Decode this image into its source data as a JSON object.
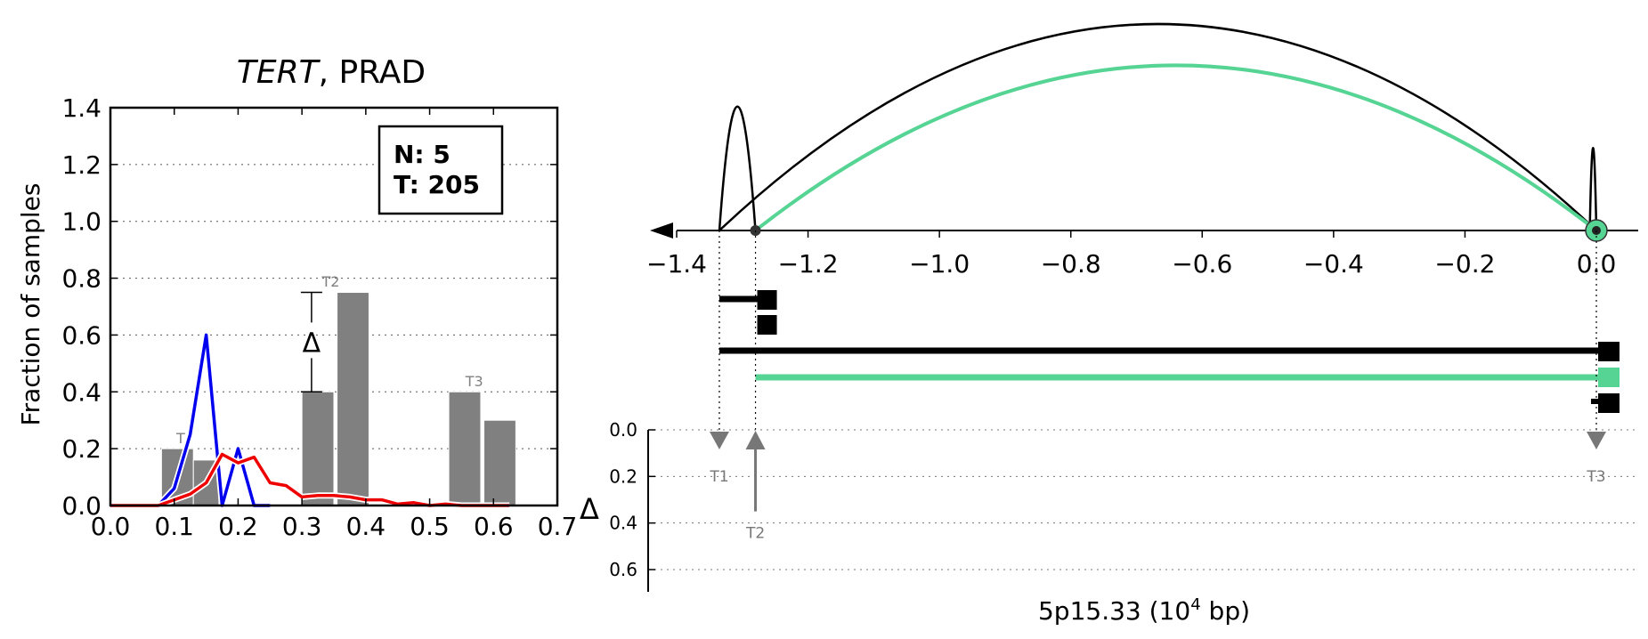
{
  "chart_data": [
    {
      "type": "bar",
      "title_italic": "TERT",
      "title_rest": ", PRAD",
      "xlabel": "",
      "ylabel": "Fraction of samples",
      "xlim": [
        0.0,
        0.7
      ],
      "ylim": [
        0.0,
        1.4
      ],
      "x_ticks": [
        "0.0",
        "0.1",
        "0.2",
        "0.3",
        "0.4",
        "0.5",
        "0.6",
        "0.7"
      ],
      "y_ticks": [
        "0.0",
        "0.2",
        "0.4",
        "0.6",
        "0.8",
        "1.0",
        "1.2",
        "1.4"
      ],
      "grid": "horizontal dotted",
      "legend_box": {
        "line1": "N: 5",
        "line2": "T: 205",
        "placement": "top-right"
      },
      "bars": [
        {
          "x": 0.08,
          "w": 0.05,
          "y": 0.2
        },
        {
          "x": 0.13,
          "w": 0.04,
          "y": 0.16
        },
        {
          "x": 0.3,
          "w": 0.05,
          "y": 0.4
        },
        {
          "x": 0.355,
          "w": 0.05,
          "y": 0.75
        },
        {
          "x": 0.53,
          "w": 0.05,
          "y": 0.4
        },
        {
          "x": 0.585,
          "w": 0.05,
          "y": 0.3
        }
      ],
      "bar_labels": [
        {
          "text": "T",
          "x": 0.11,
          "y": 0.22
        },
        {
          "text": "T2",
          "x": 0.345,
          "y": 0.77
        },
        {
          "text": "T3",
          "x": 0.57,
          "y": 0.42
        }
      ],
      "delta_marker": {
        "symbol": "Δ",
        "x": 0.315,
        "y_low": 0.4,
        "y_high": 0.75
      },
      "series": [
        {
          "color": "#0000ee",
          "x": [
            0.0,
            0.075,
            0.1,
            0.125,
            0.15,
            0.175,
            0.2,
            0.225,
            0.25
          ],
          "y": [
            0.0,
            0.0,
            0.06,
            0.25,
            0.6,
            0.0,
            0.2,
            0.0,
            0.0
          ]
        },
        {
          "color": "#ee0000",
          "x": [
            0.0,
            0.075,
            0.1,
            0.125,
            0.15,
            0.175,
            0.2,
            0.225,
            0.25,
            0.275,
            0.3,
            0.325,
            0.35,
            0.375,
            0.4,
            0.425,
            0.45,
            0.475,
            0.5,
            0.525,
            0.55,
            0.575,
            0.6,
            0.625
          ],
          "y": [
            0.0,
            0.0,
            0.02,
            0.04,
            0.08,
            0.18,
            0.15,
            0.17,
            0.08,
            0.07,
            0.03,
            0.035,
            0.035,
            0.03,
            0.02,
            0.02,
            0.005,
            0.01,
            0.0,
            0.005,
            0.0,
            0.0,
            0.0,
            0.0
          ]
        }
      ]
    },
    {
      "type": "genomic-arc-diagram",
      "xlabel_main": "5p15.33 (10",
      "xlabel_sup": "4",
      "xlabel_end": " bp)",
      "xlim": [
        -1.4,
        0.0
      ],
      "x_ticks": [
        "−1.4",
        "−1.2",
        "−1.0",
        "−0.8",
        "−0.6",
        "−0.4",
        "−0.2",
        "0.0"
      ],
      "delta_label": "Δ",
      "delta_ticks": [
        "0.0",
        "0.2",
        "0.4",
        "0.6"
      ],
      "delta_lim": [
        0.0,
        0.6
      ],
      "arcs_black": [
        {
          "from": -1.335,
          "to": 0.0,
          "height": 1.0
        },
        {
          "from": -1.335,
          "to": -1.28,
          "height": 0.6
        },
        {
          "from": -0.01,
          "to": 0.0,
          "height": 0.4
        }
      ],
      "arcs_green": [
        {
          "from": -1.28,
          "to": 0.0,
          "height": 0.8
        }
      ],
      "transcripts": [
        {
          "start": -1.335,
          "end": -1.28,
          "color": "#000000"
        },
        {
          "start": -1.335,
          "end": 0.0,
          "color": "#000000"
        },
        {
          "start": -1.28,
          "end": 0.0,
          "color": "#55d494"
        }
      ],
      "markers": [
        {
          "label": "T1",
          "pos": -1.335,
          "direction": "down",
          "delta": 0.05
        },
        {
          "label": "T2",
          "pos": -1.28,
          "direction": "up",
          "delta": 0.35
        },
        {
          "label": "T3",
          "pos": 0.0,
          "direction": "down",
          "delta": 0.05
        }
      ],
      "colors": {
        "black": "#000000",
        "green": "#55d494",
        "gray": "#777777"
      }
    }
  ]
}
